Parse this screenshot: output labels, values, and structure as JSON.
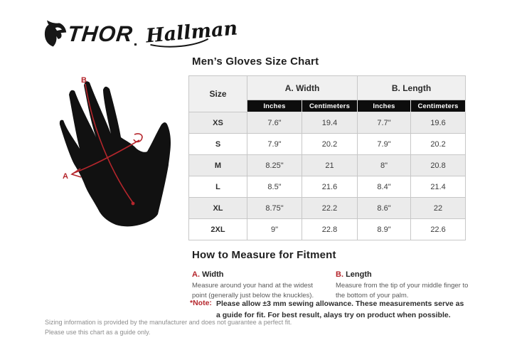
{
  "brand": {
    "thor_label": "THOR",
    "hallman_label": "Hallman"
  },
  "glove_diagram": {
    "label_a": "A",
    "label_b": "B"
  },
  "size_chart": {
    "title": "Men’s Gloves Size Chart",
    "col_size": "Size",
    "col_width": "A. Width",
    "col_length": "B. Length",
    "col_inches": "Inches",
    "col_centimeters": "Centimeters",
    "rows": [
      {
        "size": "XS",
        "width_in": "7.6\"",
        "width_cm": "19.4",
        "length_in": "7.7\"",
        "length_cm": "19.6"
      },
      {
        "size": "S",
        "width_in": "7.9\"",
        "width_cm": "20.2",
        "length_in": "7.9\"",
        "length_cm": "20.2"
      },
      {
        "size": "M",
        "width_in": "8.25\"",
        "width_cm": "21",
        "length_in": "8\"",
        "length_cm": "20.8"
      },
      {
        "size": "L",
        "width_in": "8.5\"",
        "width_cm": "21.6",
        "length_in": "8.4\"",
        "length_cm": "21.4"
      },
      {
        "size": "XL",
        "width_in": "8.75\"",
        "width_cm": "22.2",
        "length_in": "8.6\"",
        "length_cm": "22"
      },
      {
        "size": "2XL",
        "width_in": "9\"",
        "width_cm": "22.8",
        "length_in": "8.9\"",
        "length_cm": "22.6"
      }
    ]
  },
  "fitment": {
    "title": "How to Measure for Fitment",
    "width_letter": "A.",
    "width_word": "Width",
    "width_text": "Measure around your hand at the widest point (generally just below the knuckles).",
    "length_letter": "B.",
    "length_word": "Length",
    "length_text": "Measure from the tip of your middle finger to the bottom of your palm."
  },
  "note": {
    "label": "*Note:",
    "text": "Please allow ±3 mm sewing allowance. These measurements serve as a guide for fit. For best result, alays try on product when possible."
  },
  "footer": {
    "line1": "Sizing information is provided by the manufacturer and does not guarantee a perfect fit.",
    "line2": "Please use this chart as a guide only."
  },
  "colors": {
    "accent_red": "#b5262c",
    "header_bg": "#f0f0f0",
    "subheader_bg": "#0d0d0d",
    "row_alt_bg": "#ebebeb"
  }
}
